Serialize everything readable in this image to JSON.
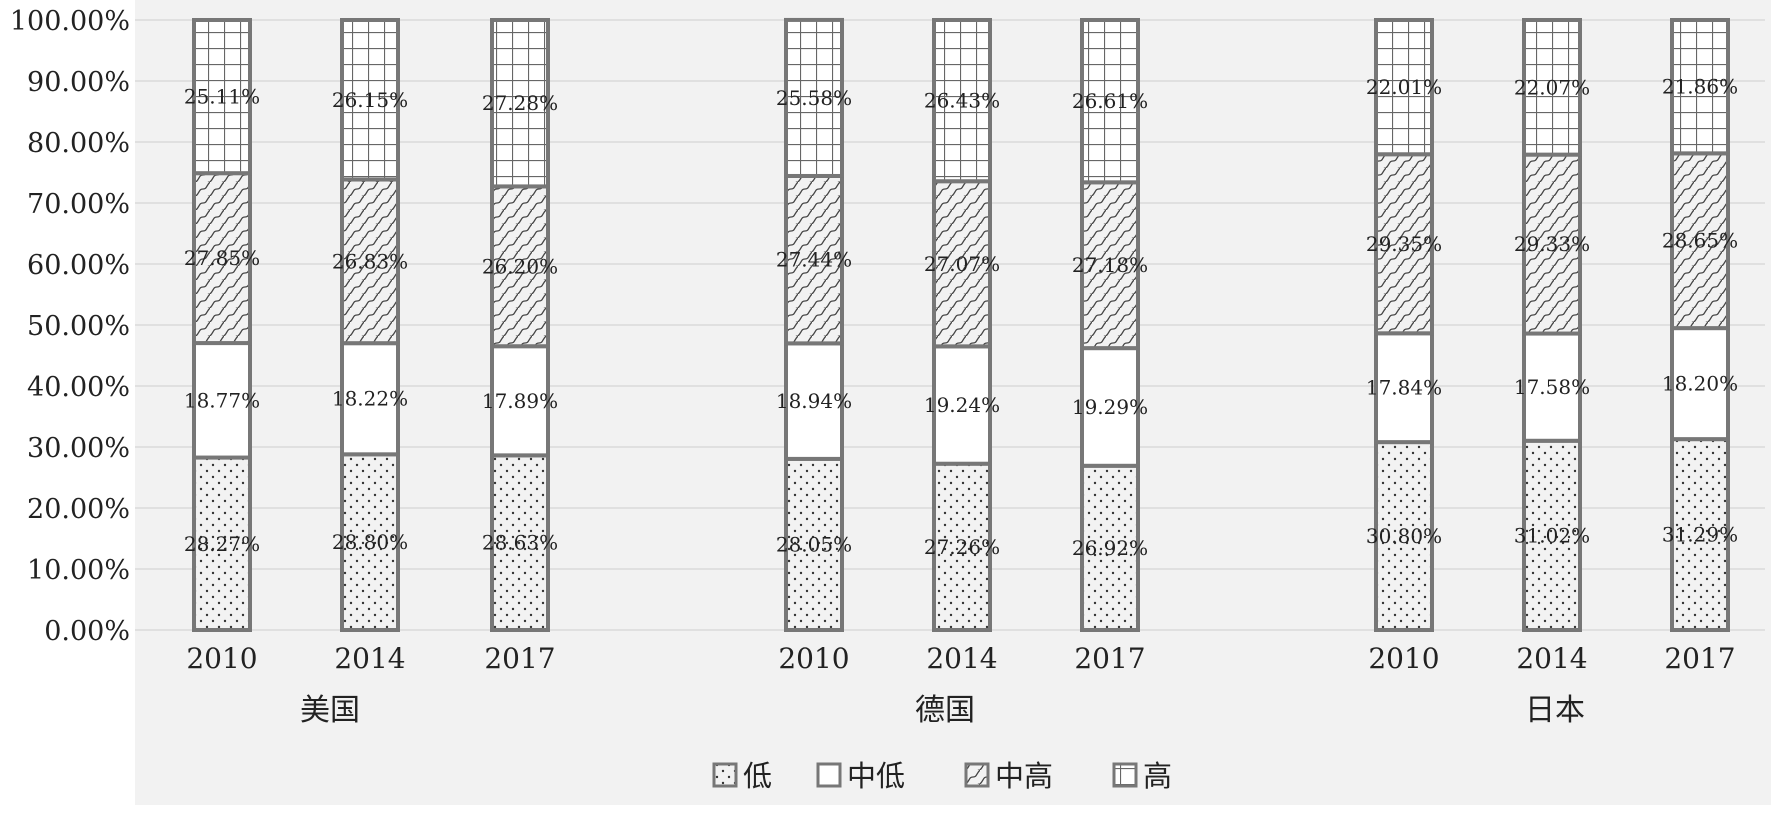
{
  "chart_data": {
    "type": "bar",
    "stacked": true,
    "ylim": [
      0,
      100
    ],
    "y_ticks": [
      "0.00%",
      "10.00%",
      "20.00%",
      "30.00%",
      "40.00%",
      "50.00%",
      "60.00%",
      "70.00%",
      "80.00%",
      "90.00%",
      "100.00%"
    ],
    "grid": true,
    "legend_position": "bottom-center",
    "groups": [
      {
        "name": "美国",
        "categories": [
          "2010",
          "2014",
          "2017"
        ]
      },
      {
        "name": "德国",
        "categories": [
          "2010",
          "2014",
          "2017"
        ]
      },
      {
        "name": "日本",
        "categories": [
          "2010",
          "2014",
          "2017"
        ]
      }
    ],
    "series": [
      {
        "name": "低",
        "pattern": "dots",
        "values": [
          28.27,
          28.8,
          28.63,
          28.05,
          27.26,
          26.92,
          30.8,
          31.02,
          31.29
        ],
        "labels": [
          "28.27%",
          "28.80%",
          "28.63%",
          "28.05%",
          "27.26%",
          "26.92%",
          "30.80%",
          "31.02%",
          "31.29%"
        ]
      },
      {
        "name": "中低",
        "pattern": "blank",
        "values": [
          18.77,
          18.22,
          17.89,
          18.94,
          19.24,
          19.29,
          17.84,
          17.58,
          18.2
        ],
        "labels": [
          "18.77%",
          "18.22%",
          "17.89%",
          "18.94%",
          "19.24%",
          "19.29%",
          "17.84%",
          "17.58%",
          "18.20%"
        ]
      },
      {
        "name": "中高",
        "pattern": "wave",
        "values": [
          27.85,
          26.83,
          26.2,
          27.44,
          27.07,
          27.18,
          29.35,
          29.33,
          28.65
        ],
        "labels": [
          "27.85%",
          "26.83%",
          "26.20%",
          "27.44%",
          "27.07%",
          "27.18%",
          "29.35%",
          "29.33%",
          "28.65%"
        ]
      },
      {
        "name": "高",
        "pattern": "grid",
        "values": [
          25.11,
          26.15,
          27.28,
          25.58,
          26.43,
          26.61,
          22.01,
          22.07,
          21.86
        ],
        "labels": [
          "25.11%",
          "26.15%",
          "27.28%",
          "25.58%",
          "26.43%",
          "26.61%",
          "22.01%",
          "22.07%",
          "21.86%"
        ]
      }
    ],
    "colors": {
      "bar_outline": "#777777",
      "gridline": "#d9d9d9",
      "background": "#f2f2f2",
      "text": "#222222"
    }
  }
}
